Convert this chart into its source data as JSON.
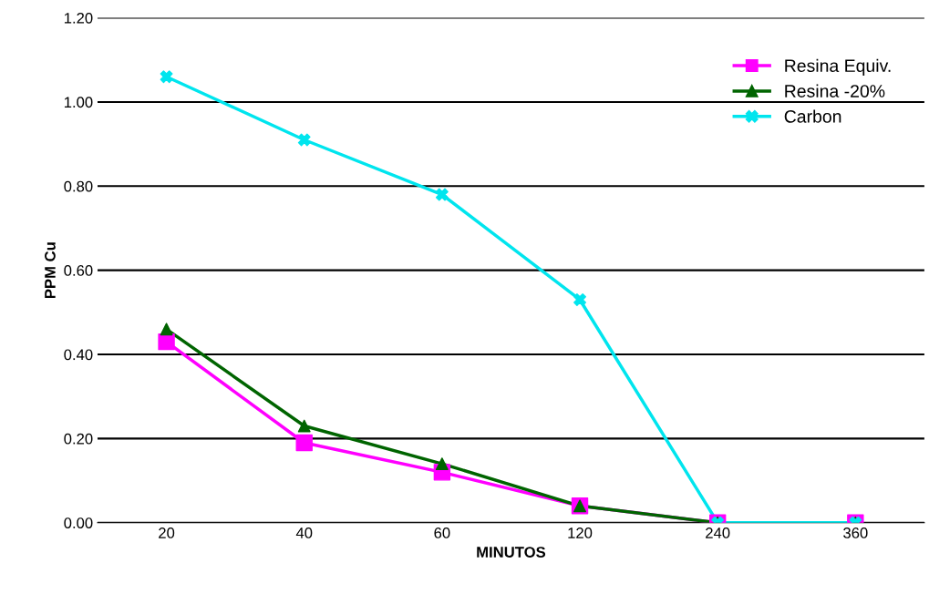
{
  "chart_data": {
    "type": "line",
    "xlabel": "MINUTOS",
    "ylabel": "PPM Cu",
    "categories": [
      "20",
      "40",
      "60",
      "120",
      "240",
      "360"
    ],
    "series": [
      {
        "name": "Resina Equiv.",
        "color": "#ff00ff",
        "marker": "square",
        "values": [
          0.43,
          0.19,
          0.12,
          0.04,
          0.0,
          0.0
        ]
      },
      {
        "name": "Resina -20%",
        "color": "#006400",
        "marker": "triangle",
        "values": [
          0.46,
          0.23,
          0.14,
          0.04,
          0.0,
          0.0
        ]
      },
      {
        "name": "Carbon",
        "color": "#00e5ee",
        "marker": "cross",
        "values": [
          1.06,
          0.91,
          0.78,
          0.53,
          0.0,
          0.0
        ]
      }
    ],
    "ylim": [
      0,
      1.2
    ],
    "yticks": [
      {
        "value": 0,
        "label": "0.00"
      },
      {
        "value": 0.2,
        "label": "0.20"
      },
      {
        "value": 0.4,
        "label": "0.40"
      },
      {
        "value": 0.6,
        "label": "0.60"
      },
      {
        "value": 0.8,
        "label": "0.80"
      },
      {
        "value": 1.0,
        "label": "1.00"
      },
      {
        "value": 1.2,
        "label": "1.20"
      }
    ],
    "grid": "y",
    "legend": "top right",
    "line_style": "solid"
  }
}
